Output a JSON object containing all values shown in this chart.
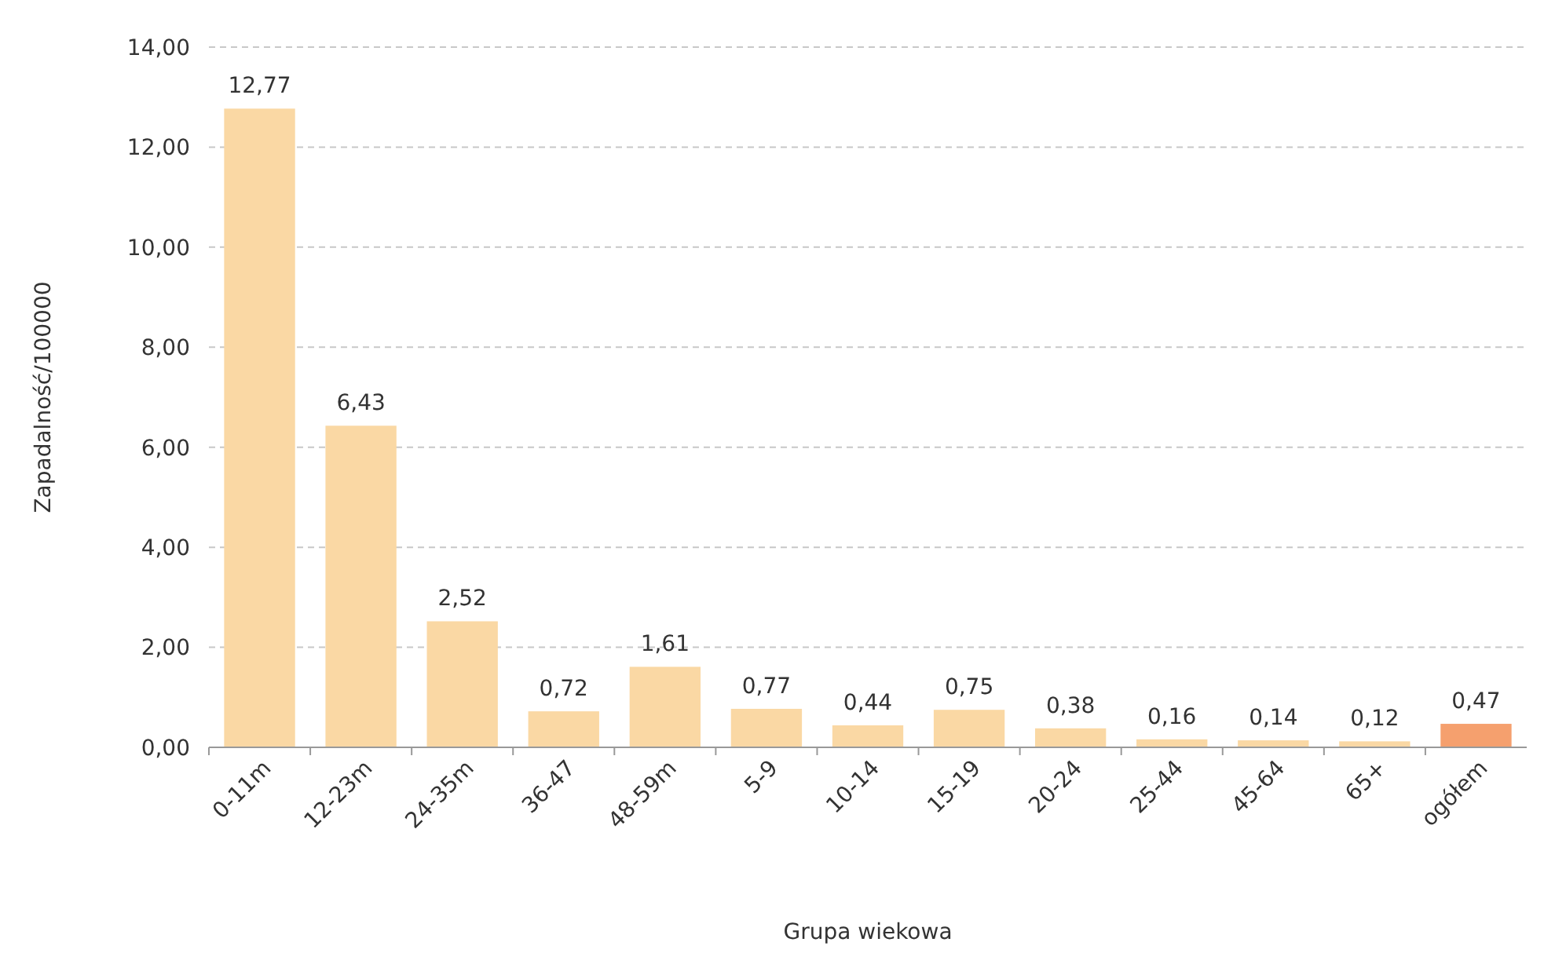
{
  "chart_data": {
    "type": "bar",
    "xlabel": "Grupa wiekowa",
    "ylabel": "Zapadalność/100000",
    "categories": [
      "0-11m",
      "12-23m",
      "24-35m",
      "36-47",
      "48-59m",
      "5-9",
      "10-14",
      "15-19",
      "20-24",
      "25-44",
      "45-64",
      "65+",
      "ogółem"
    ],
    "values": [
      12.77,
      6.43,
      2.52,
      0.72,
      1.61,
      0.77,
      0.44,
      0.75,
      0.38,
      0.16,
      0.14,
      0.12,
      0.47
    ],
    "value_labels": [
      "12,77",
      "6,43",
      "2,52",
      "0,72",
      "1,61",
      "0,77",
      "0,44",
      "0,75",
      "0,38",
      "0,16",
      "0,14",
      "0,12",
      "0,47"
    ],
    "colors": [
      "#fad8a4",
      "#fad8a4",
      "#fad8a4",
      "#fad8a4",
      "#fad8a4",
      "#fad8a4",
      "#fad8a4",
      "#fad8a4",
      "#fad8a4",
      "#fad8a4",
      "#fad8a4",
      "#fad8a4",
      "#f5a06e"
    ],
    "ylim": [
      0,
      14
    ],
    "yticks": [
      {
        "value": 0,
        "label": "0,00"
      },
      {
        "value": 2,
        "label": "2,00"
      },
      {
        "value": 4,
        "label": "4,00"
      },
      {
        "value": 6,
        "label": "6,00"
      },
      {
        "value": 8,
        "label": "8,00"
      },
      {
        "value": 10,
        "label": "10,00"
      },
      {
        "value": 12,
        "label": "12,00"
      },
      {
        "value": 14,
        "label": "14,00"
      }
    ],
    "grid": "y"
  }
}
